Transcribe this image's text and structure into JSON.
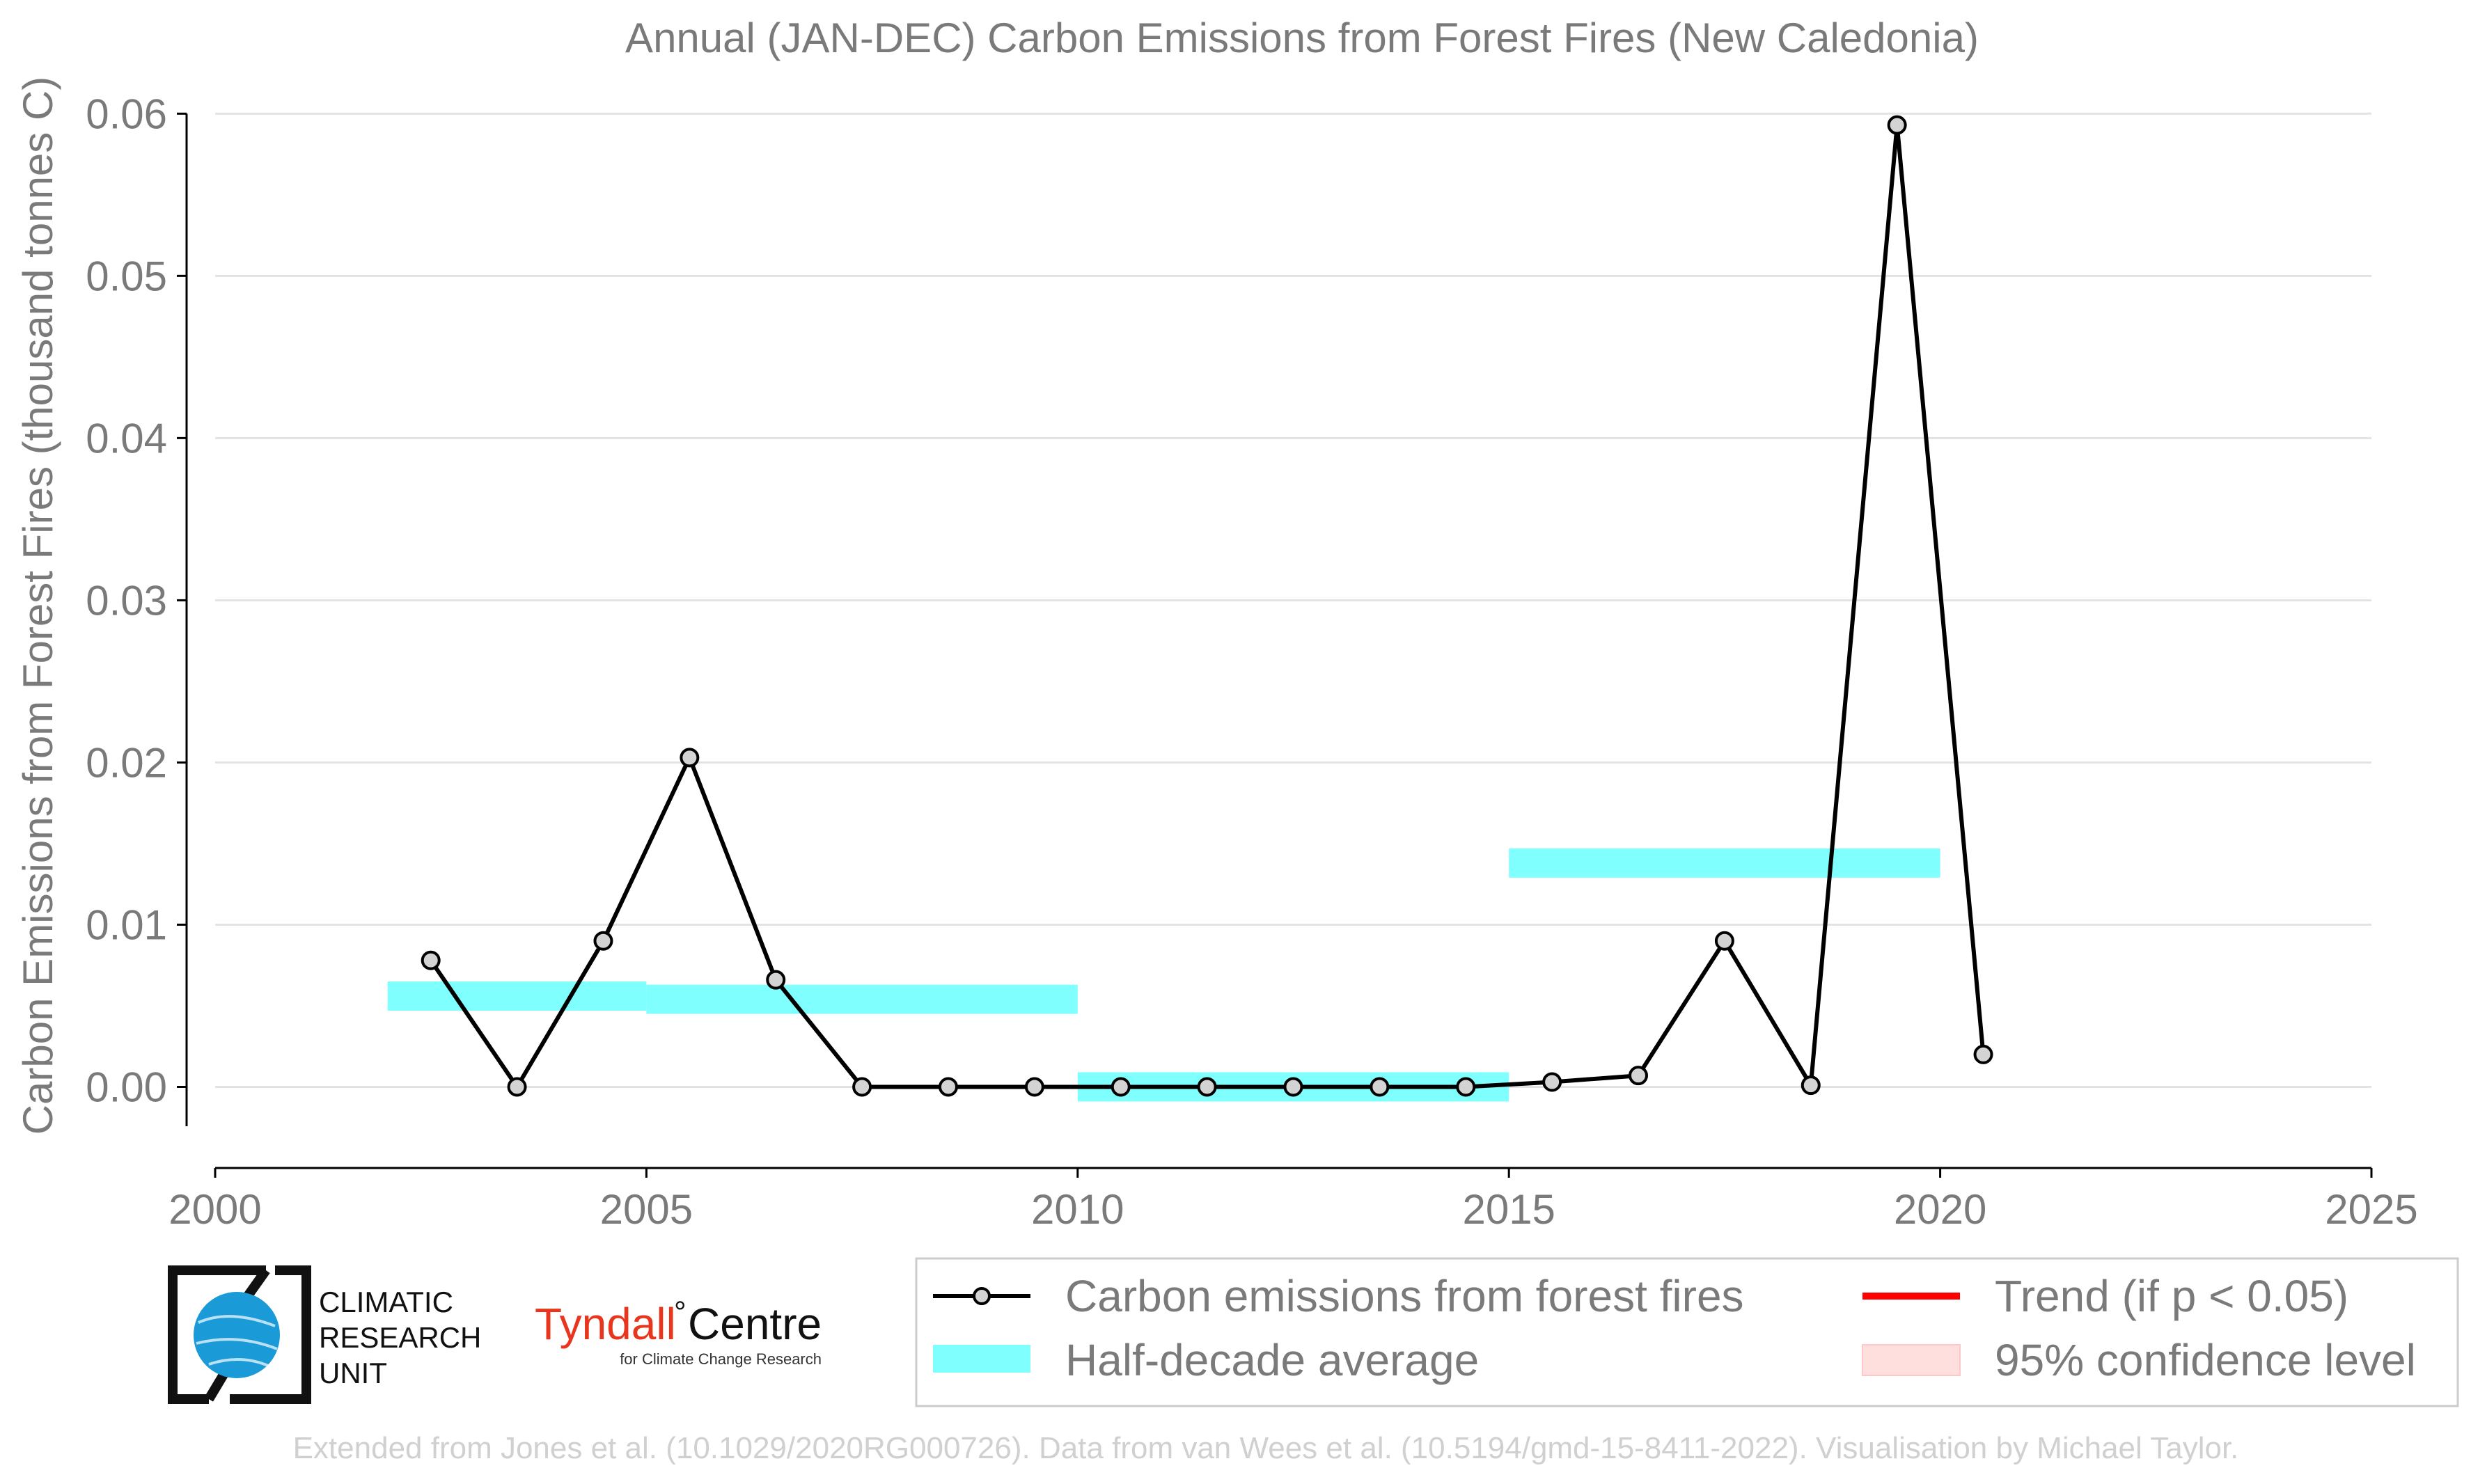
{
  "chart_data": {
    "type": "line",
    "title": "Annual (JAN-DEC) Carbon Emissions from Forest Fires (New Caledonia)",
    "ylabel": "Carbon Emissions from Forest Fires (thousand tonnes C)",
    "xlabel": "",
    "xlim": [
      2000,
      2025
    ],
    "ylim": [
      -0.005,
      0.061
    ],
    "x_ticks": [
      2000,
      2005,
      2010,
      2015,
      2020,
      2025
    ],
    "y_ticks": [
      0.0,
      0.01,
      0.02,
      0.03,
      0.04,
      0.05,
      0.06
    ],
    "y_tick_labels": [
      "0.00",
      "0.01",
      "0.02",
      "0.03",
      "0.04",
      "0.05",
      "0.06"
    ],
    "grid": true,
    "series": [
      {
        "name": "Carbon emissions from forest fires",
        "color": "#000000",
        "marker_fill": "#d3d3d3",
        "x": [
          2002.5,
          2003.5,
          2004.5,
          2005.5,
          2006.5,
          2007.5,
          2008.5,
          2009.5,
          2010.5,
          2011.5,
          2012.5,
          2013.5,
          2014.5,
          2015.5,
          2016.5,
          2017.5,
          2018.5,
          2019.5,
          2020.5
        ],
        "y": [
          0.0078,
          0.0,
          0.009,
          0.0203,
          0.0066,
          0.0,
          0.0,
          0.0,
          0.0,
          0.0,
          0.0,
          0.0,
          0.0,
          0.0003,
          0.0007,
          0.009,
          0.0001,
          0.0593,
          0.002
        ]
      }
    ],
    "half_decade_average": {
      "name": "Half-decade average",
      "color": "#80ffff",
      "segments": [
        {
          "x_start": 2002,
          "x_end": 2005,
          "value": 0.0056
        },
        {
          "x_start": 2005,
          "x_end": 2010,
          "value": 0.0054
        },
        {
          "x_start": 2010,
          "x_end": 2015,
          "value": 0.0
        },
        {
          "x_start": 2015,
          "x_end": 2020,
          "value": 0.0138
        }
      ]
    },
    "legend": {
      "placement": "bottom-right",
      "entries": [
        {
          "label": "Carbon emissions from forest fires",
          "kind": "line-marker",
          "color": "#000000"
        },
        {
          "label": "Trend (if p < 0.05)",
          "kind": "line",
          "color": "#ff0000"
        },
        {
          "label": "Half-decade average",
          "kind": "band",
          "color": "#80ffff"
        },
        {
          "label": "95% confidence level",
          "kind": "band",
          "color": "#ffdede"
        }
      ]
    }
  },
  "logos": {
    "cru": [
      "CLIMATIC",
      "RESEARCH",
      "UNIT"
    ],
    "tyndall_main": "Tyndall",
    "tyndall_centre": "Centre",
    "tyndall_degree": "°",
    "tyndall_sub": "for Climate Change Research"
  },
  "footer": "Extended from Jones et al. (10.1029/2020RG000726). Data from van Wees et al. (10.5194/gmd-15-8411-2022). Visualisation by Michael Taylor."
}
